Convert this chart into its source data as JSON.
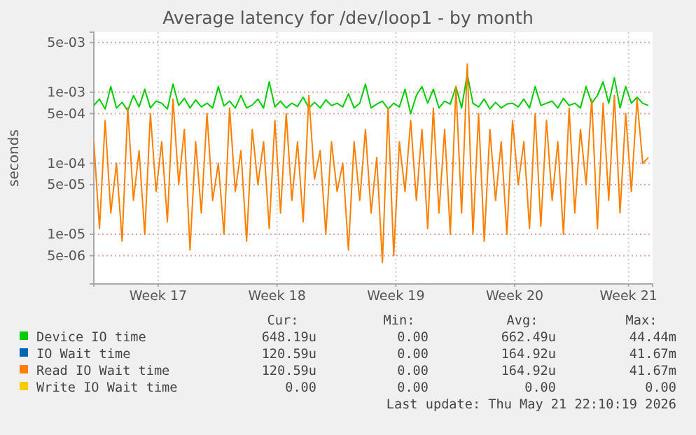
{
  "chart_data": {
    "type": "line",
    "title": "Average latency for /dev/loop1 - by month",
    "ylabel": "seconds",
    "x": [
      "2026-04-19T00:00",
      "2026-04-19T08:00",
      "2026-04-19T16:00",
      "2026-04-20T00:00",
      "2026-04-20T08:00",
      "2026-04-20T16:00",
      "2026-04-21T00:00",
      "2026-04-21T08:00",
      "2026-04-21T16:00",
      "2026-04-22T00:00",
      "2026-04-22T08:00",
      "2026-04-22T16:00",
      "2026-04-23T00:00",
      "2026-04-23T08:00",
      "2026-04-23T16:00",
      "2026-04-24T00:00",
      "2026-04-24T08:00",
      "2026-04-24T16:00",
      "2026-04-25T00:00",
      "2026-04-25T08:00",
      "2026-04-25T16:00",
      "2026-04-26T00:00",
      "2026-04-26T08:00",
      "2026-04-26T16:00",
      "2026-04-27T00:00",
      "2026-04-27T08:00",
      "2026-04-27T16:00",
      "2026-04-28T00:00",
      "2026-04-28T08:00",
      "2026-04-28T16:00",
      "2026-04-29T00:00",
      "2026-04-29T08:00",
      "2026-04-29T16:00",
      "2026-04-30T00:00",
      "2026-04-30T08:00",
      "2026-04-30T16:00",
      "2026-05-01T00:00",
      "2026-05-01T08:00",
      "2026-05-01T16:00",
      "2026-05-02T00:00",
      "2026-05-02T08:00",
      "2026-05-02T16:00",
      "2026-05-03T00:00",
      "2026-05-03T08:00",
      "2026-05-03T16:00",
      "2026-05-04T00:00",
      "2026-05-04T08:00",
      "2026-05-04T16:00",
      "2026-05-05T00:00",
      "2026-05-05T08:00",
      "2026-05-05T16:00",
      "2026-05-06T00:00",
      "2026-05-06T08:00",
      "2026-05-06T16:00",
      "2026-05-07T00:00",
      "2026-05-07T08:00",
      "2026-05-07T16:00",
      "2026-05-08T00:00",
      "2026-05-08T08:00",
      "2026-05-08T16:00",
      "2026-05-09T00:00",
      "2026-05-09T08:00",
      "2026-05-09T16:00",
      "2026-05-10T00:00",
      "2026-05-10T08:00",
      "2026-05-10T16:00",
      "2026-05-11T00:00",
      "2026-05-11T08:00",
      "2026-05-11T16:00",
      "2026-05-12T00:00",
      "2026-05-12T08:00",
      "2026-05-12T16:00",
      "2026-05-13T00:00",
      "2026-05-13T08:00",
      "2026-05-13T16:00",
      "2026-05-14T00:00",
      "2026-05-14T08:00",
      "2026-05-14T16:00",
      "2026-05-15T00:00",
      "2026-05-15T08:00",
      "2026-05-15T16:00",
      "2026-05-16T00:00",
      "2026-05-16T08:00",
      "2026-05-16T16:00",
      "2026-05-17T00:00",
      "2026-05-17T08:00",
      "2026-05-17T16:00",
      "2026-05-18T00:00",
      "2026-05-18T08:00",
      "2026-05-18T16:00",
      "2026-05-19T00:00",
      "2026-05-19T08:00",
      "2026-05-19T16:00",
      "2026-05-20T00:00",
      "2026-05-20T08:00",
      "2026-05-20T16:00",
      "2026-05-21T00:00",
      "2026-05-21T08:00",
      "2026-05-21T16:00"
    ],
    "series": [
      {
        "name": "Device IO time",
        "color": "#00cc00",
        "values": [
          0.00065,
          0.0008,
          0.00058,
          0.0012,
          0.0006,
          0.00072,
          0.00055,
          0.0009,
          0.00062,
          0.0011,
          0.0006,
          0.00075,
          0.0007,
          0.00058,
          0.0013,
          0.00065,
          0.00082,
          0.0006,
          0.00078,
          0.00062,
          0.0007,
          0.0006,
          0.0012,
          0.00064,
          0.00075,
          0.0006,
          0.0009,
          0.0006,
          0.00066,
          0.0008,
          0.0006,
          0.0014,
          0.00062,
          0.00075,
          0.0006,
          0.0007,
          0.00063,
          0.00085,
          0.0006,
          0.00072,
          0.0006,
          0.00078,
          0.00065,
          0.0007,
          0.00062,
          0.00095,
          0.0006,
          0.0007,
          0.0013,
          0.0006,
          0.00068,
          0.00075,
          0.00058,
          0.0007,
          0.00062,
          0.0011,
          0.0005,
          0.0009,
          0.0012,
          0.0007,
          0.0011,
          0.0006,
          0.00075,
          0.00068,
          0.0012,
          0.0006,
          0.0018,
          0.0007,
          0.00062,
          0.0008,
          0.00058,
          0.00072,
          0.0006,
          0.00068,
          0.0007,
          0.00062,
          0.0008,
          0.0006,
          0.0012,
          0.00065,
          0.0007,
          0.00075,
          0.0006,
          0.00082,
          0.00065,
          0.0007,
          0.0006,
          0.0012,
          0.0007,
          0.0009,
          0.0014,
          0.0007,
          0.0016,
          0.0006,
          0.0012,
          0.0007,
          0.00085,
          0.0007,
          0.00065
        ]
      },
      {
        "name": "IO Wait time",
        "color": "#0066b3",
        "values": [
          null,
          null,
          null,
          null,
          null,
          null,
          null,
          null,
          null,
          null,
          null,
          null,
          null,
          null,
          null,
          null,
          null,
          null,
          null,
          null,
          null,
          null,
          null,
          null,
          null,
          null,
          null,
          null,
          null,
          null,
          null,
          null,
          null,
          null,
          null,
          null,
          null,
          null,
          null,
          null,
          null,
          null,
          null,
          null,
          null,
          null,
          null,
          null,
          null,
          null,
          null,
          null,
          null,
          null,
          null,
          null,
          null,
          null,
          null,
          null,
          null,
          null,
          null,
          null,
          null,
          null,
          null,
          null,
          null,
          null,
          null,
          null,
          null,
          null,
          null,
          null,
          null,
          null,
          null,
          null,
          null,
          null,
          null,
          null,
          null,
          null,
          null,
          null,
          null,
          null,
          null,
          null,
          null,
          null,
          null,
          null,
          null,
          null,
          null
        ]
      },
      {
        "name": "Read IO Wait time",
        "color": "#ff8000",
        "values": [
          0.0002,
          1.2e-05,
          0.0004,
          2e-05,
          0.0001,
          8e-06,
          0.0006,
          3e-05,
          0.00015,
          1e-05,
          0.0005,
          4e-05,
          0.0002,
          1.5e-05,
          0.0008,
          5e-05,
          0.0003,
          6e-06,
          0.0002,
          2e-05,
          0.0005,
          3e-05,
          0.0001,
          1e-05,
          0.0006,
          4e-05,
          0.00015,
          8e-06,
          0.0003,
          5e-05,
          0.0002,
          1.2e-05,
          0.0004,
          2e-05,
          0.0005,
          3e-05,
          0.0002,
          1.5e-05,
          0.0009,
          6e-05,
          0.00015,
          1e-05,
          0.0002,
          4e-05,
          0.0001,
          6e-06,
          0.0002,
          3e-05,
          0.0003,
          2e-05,
          0.00012,
          4e-06,
          0.0006,
          5e-06,
          0.0002,
          4e-05,
          0.0004,
          3e-05,
          0.0003,
          1.2e-05,
          0.0006,
          2e-05,
          0.0003,
          1e-05,
          0.0012,
          2e-05,
          0.0025,
          1e-05,
          0.0005,
          8e-06,
          0.0003,
          3e-05,
          0.0002,
          1e-05,
          0.0004,
          5e-05,
          0.0002,
          1.2e-05,
          0.0005,
          1.3e-05,
          0.0004,
          3e-05,
          0.0002,
          1e-05,
          0.0006,
          2e-05,
          0.0003,
          5e-05,
          0.0008,
          1.2e-05,
          0.0007,
          3e-05,
          0.0009,
          2e-05,
          0.0005,
          4e-05,
          0.0008,
          0.0001,
          0.00012
        ]
      },
      {
        "name": "Write IO Wait time",
        "color": "#ffcc00",
        "values": [
          null,
          null,
          null,
          null,
          null,
          null,
          null,
          null,
          null,
          null,
          null,
          null,
          null,
          null,
          null,
          null,
          null,
          null,
          null,
          null,
          null,
          null,
          null,
          null,
          null,
          null,
          null,
          null,
          null,
          null,
          null,
          null,
          null,
          null,
          null,
          null,
          null,
          null,
          null,
          null,
          null,
          null,
          null,
          null,
          null,
          null,
          null,
          null,
          null,
          null,
          null,
          null,
          null,
          null,
          null,
          null,
          null,
          null,
          null,
          null,
          null,
          null,
          null,
          null,
          null,
          null,
          null,
          null,
          null,
          null,
          null,
          null,
          null,
          null,
          null,
          null,
          null,
          null,
          null,
          null,
          null,
          null,
          null,
          null,
          null,
          null,
          null,
          null,
          null,
          null,
          null,
          null,
          null,
          null,
          null,
          null,
          null,
          null,
          null
        ]
      }
    ],
    "xlim": [
      "2026-04-19T00:00",
      "2026-05-21T22:00"
    ],
    "xticks": [
      {
        "value": "2026-04-22T19:00",
        "label": "Week 17"
      },
      {
        "value": "2026-04-29T19:00",
        "label": "Week 18"
      },
      {
        "value": "2026-05-06T19:00",
        "label": "Week 19"
      },
      {
        "value": "2026-05-13T19:00",
        "label": "Week 20"
      },
      {
        "value": "2026-05-20T12:00",
        "label": "Week 21"
      }
    ],
    "log": true,
    "ylim": [
      2e-06,
      0.007
    ],
    "yticks": [
      {
        "value": 5e-06,
        "label": "5e-06"
      },
      {
        "value": 1e-05,
        "label": "1e-05"
      },
      {
        "value": 5e-05,
        "label": "5e-05"
      },
      {
        "value": 0.0001,
        "label": "1e-04"
      },
      {
        "value": 0.0005,
        "label": "5e-04"
      },
      {
        "value": 0.001,
        "label": "1e-03"
      },
      {
        "value": 0.005,
        "label": "5e-03"
      }
    ],
    "grid": true,
    "legend": "bottom",
    "line_style": "solid",
    "marker": "none",
    "annotations": [
      "Cur:",
      "Min:",
      "Avg:",
      "Max:",
      "648.19u",
      "0.00",
      "662.49u",
      "44.44m",
      "120.59u",
      "0.00",
      "164.92u",
      "41.67m",
      "120.59u",
      "0.00",
      "164.92u",
      "41.67m",
      "0.00",
      "0.00",
      "0.00",
      "0.00",
      "Last update: Thu May 21 22:10:19 2026"
    ]
  }
}
